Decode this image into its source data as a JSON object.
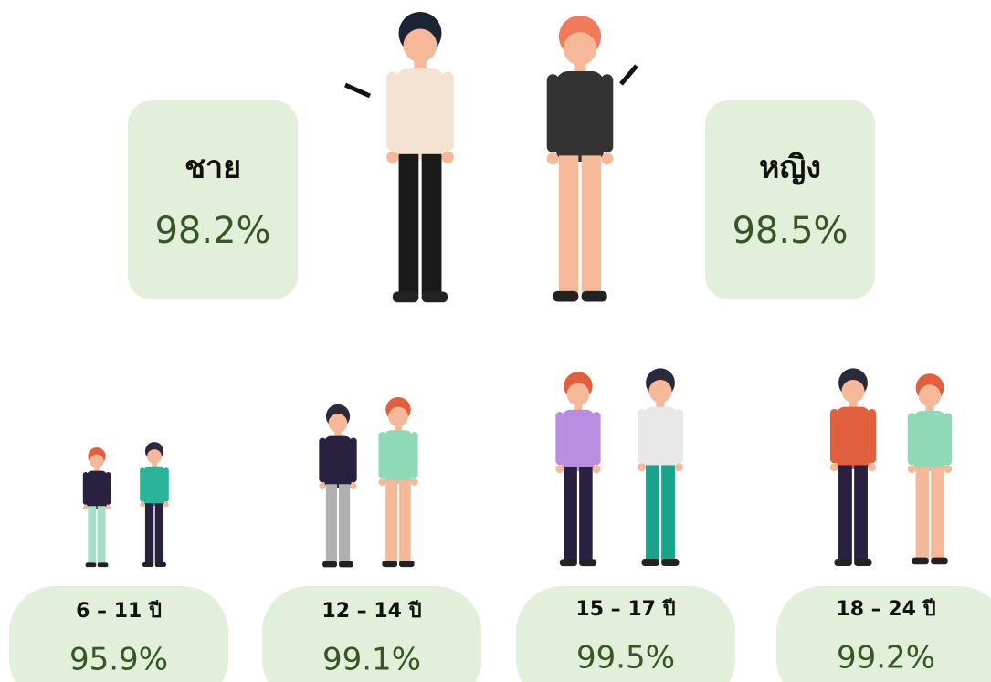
{
  "gender": [
    {
      "label": "ชาย",
      "value": "98.2%"
    },
    {
      "label": "หญิง",
      "value": "98.5%"
    }
  ],
  "age_groups": [
    {
      "label": "6 – 11 ปี",
      "value": "95.9%"
    },
    {
      "label": "12 – 14 ปี",
      "value": "99.1%"
    },
    {
      "label": "15 – 17 ปี",
      "value": "99.5%"
    },
    {
      "label": "18 – 24 ปี",
      "value": "99.2%"
    }
  ]
}
